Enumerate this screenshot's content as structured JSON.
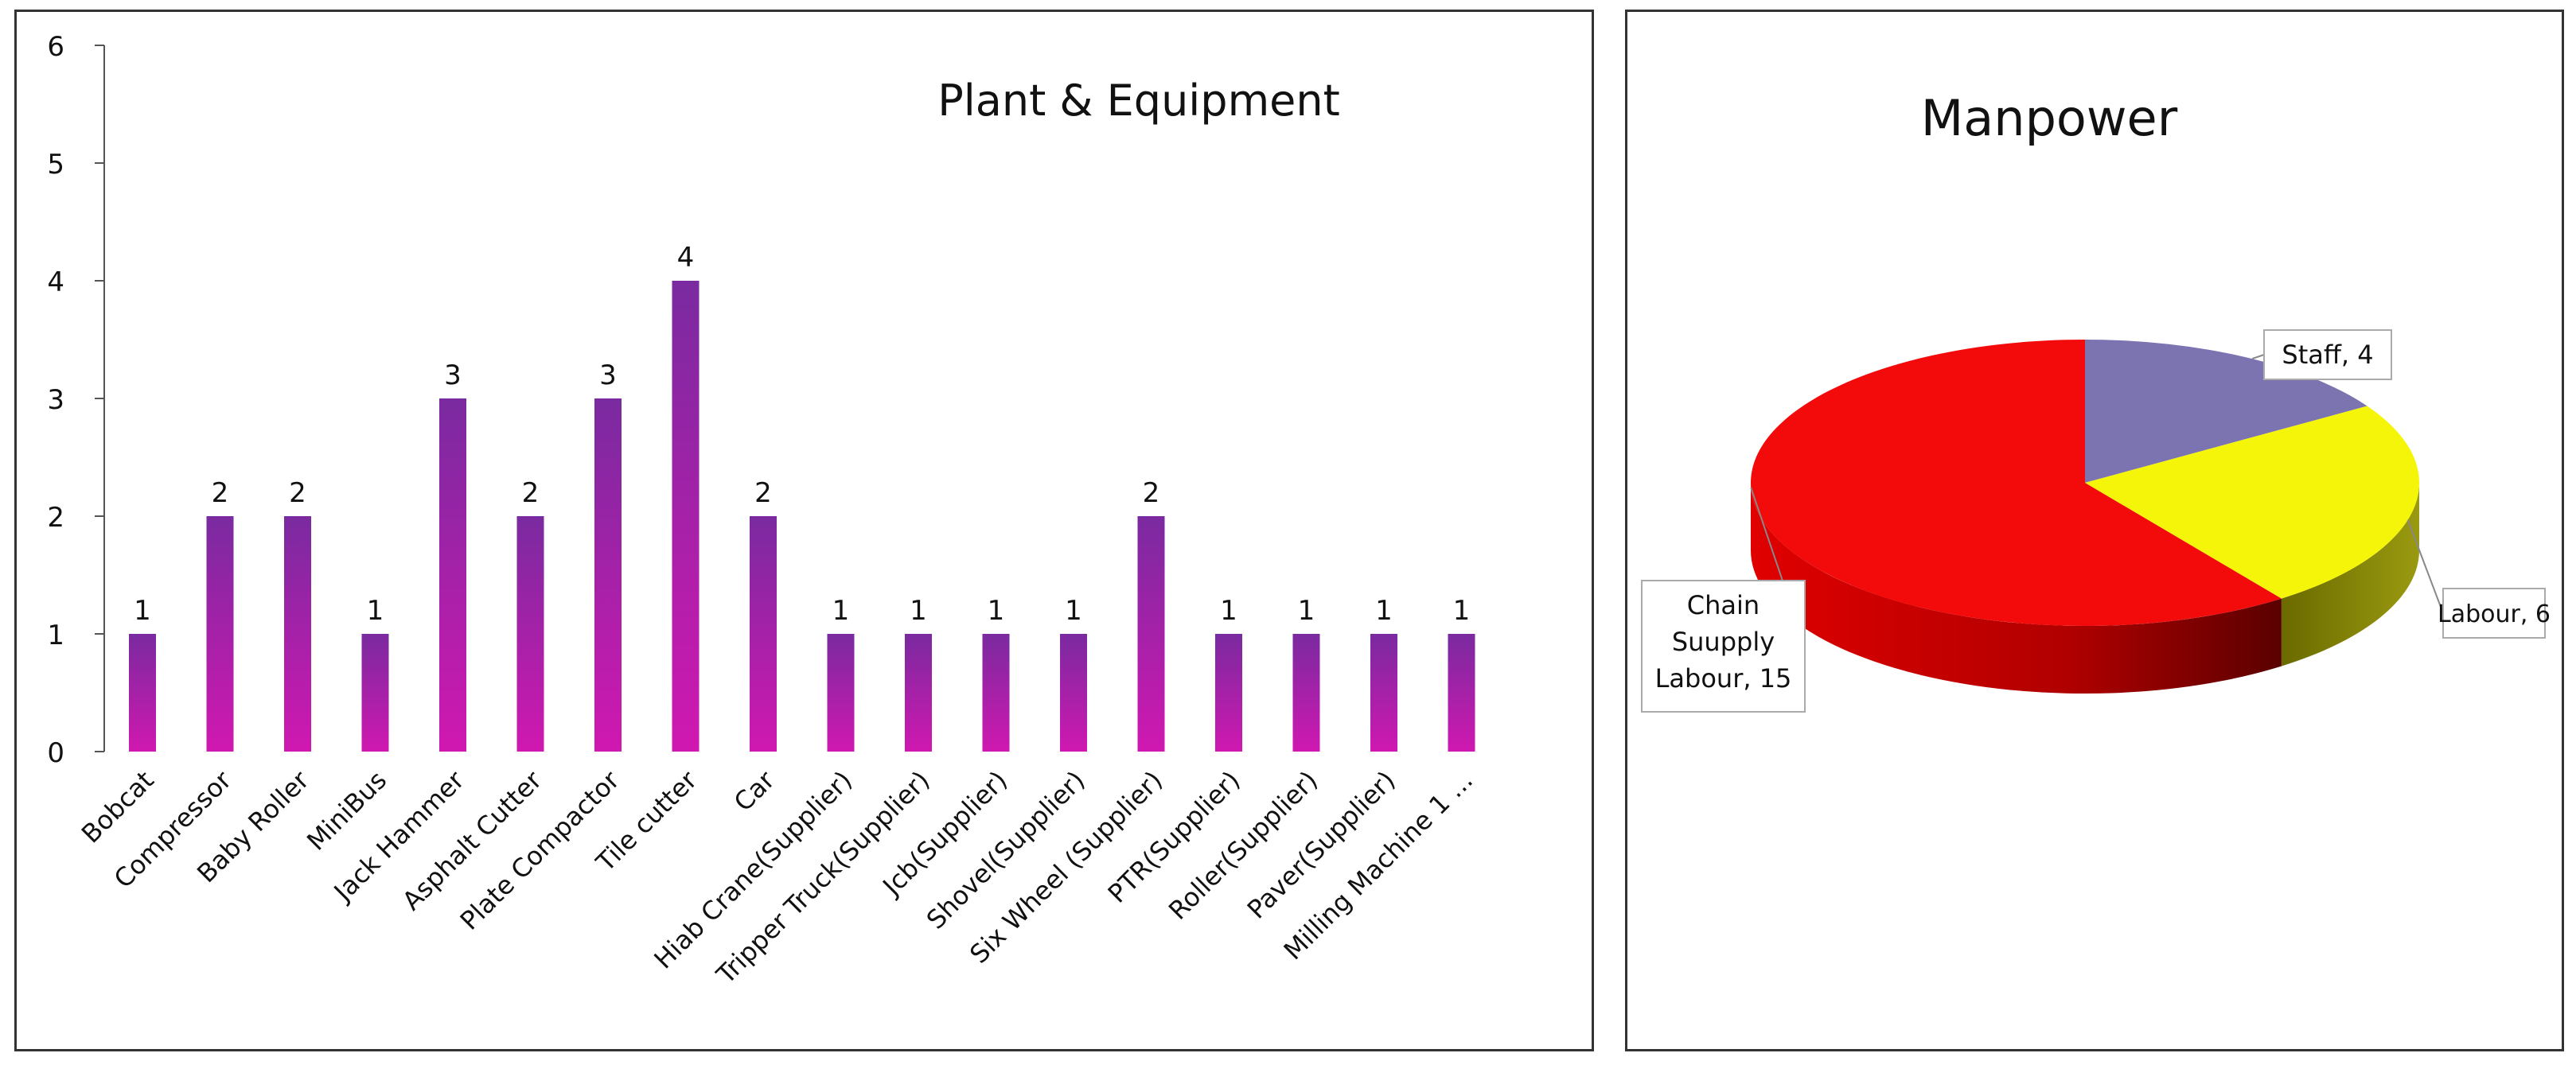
{
  "chart_data": [
    {
      "type": "bar",
      "title": "Plant & Equipment",
      "categories": [
        "Bobcat",
        "Compressor",
        "Baby Roller",
        "MiniBus",
        "Jack Hammer",
        "Asphalt Cutter",
        "Plate Compactor",
        "Tile cutter",
        "Car",
        "Hiab Crane(Supplier)",
        "Tripper Truck(Supplier)",
        "Jcb(Supplier)",
        "Shovel(Supplier)",
        "Six Wheel (Supplier)",
        "PTR(Supplier)",
        "Roller(Supplier)",
        "Paver(Supplier)",
        "Milling Machine 1 ..."
      ],
      "values": [
        1,
        2,
        2,
        1,
        3,
        2,
        3,
        4,
        2,
        1,
        1,
        1,
        1,
        2,
        1,
        1,
        1,
        1
      ],
      "data_labels": [
        "1",
        "2",
        "2",
        "1",
        "3",
        "2",
        "3",
        "4",
        "2",
        "1",
        "1",
        "1",
        "1",
        "2",
        "1",
        "1",
        "1",
        "1"
      ],
      "ylim": [
        0,
        6
      ],
      "yticks": [
        0,
        1,
        2,
        3,
        4,
        5,
        6
      ],
      "xlabel": "",
      "ylabel": "",
      "grid": false,
      "bar_colors": {
        "top": "#7a2aa0",
        "bottom": "#d018b0"
      }
    },
    {
      "type": "pie",
      "title": "Manpower",
      "slices": [
        {
          "label": "Staff, 4",
          "value": 4,
          "color": "#7b74b0"
        },
        {
          "label": "Labour, 6",
          "value": 6,
          "color": "#f5f50a"
        },
        {
          "label": "Chain Suupply Labour, 15",
          "value": 15,
          "color": "#f30a0a"
        }
      ]
    }
  ]
}
